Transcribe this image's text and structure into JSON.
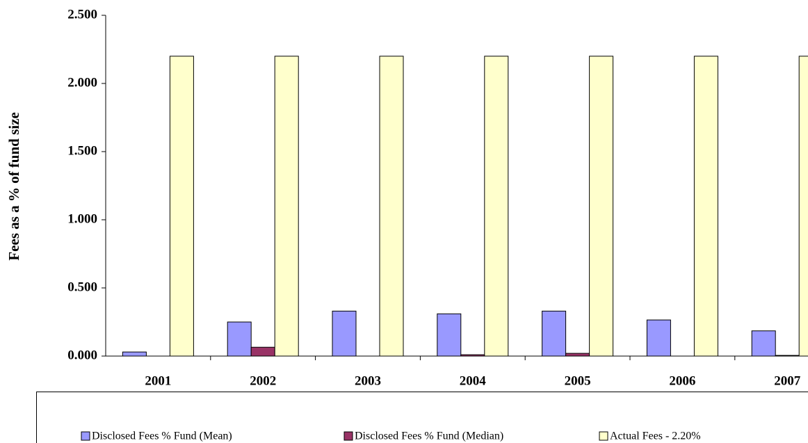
{
  "chart_data": {
    "type": "bar",
    "y_label": "Fees as a % of fund size",
    "categories": [
      "2001",
      "2002",
      "2003",
      "2004",
      "2005",
      "2006",
      "2007"
    ],
    "series": [
      {
        "name": "Disclosed Fees % Fund (Mean)",
        "color": "#9999ff",
        "values": [
          0.03,
          0.25,
          0.33,
          0.31,
          0.33,
          0.265,
          0.185
        ]
      },
      {
        "name": "Disclosed Fees % Fund (Median)",
        "color": "#993366",
        "values": [
          0,
          0.065,
          0,
          0.01,
          0.02,
          0,
          0.005
        ]
      },
      {
        "name": "Actual Fees - 2.20%",
        "color": "#ffffcc",
        "values": [
          2.2,
          2.2,
          2.2,
          2.2,
          2.2,
          2.2,
          2.2
        ]
      }
    ],
    "ylim": [
      0,
      2.5
    ],
    "yticks": [
      {
        "value": 0,
        "label": "0.000"
      },
      {
        "value": 0.5,
        "label": "0.500"
      },
      {
        "value": 1,
        "label": "1.000"
      },
      {
        "value": 1.5,
        "label": "1.500"
      },
      {
        "value": 2,
        "label": "2.000"
      },
      {
        "value": 2.5,
        "label": "2.500"
      }
    ],
    "grid": false,
    "legend": "bottom"
  }
}
